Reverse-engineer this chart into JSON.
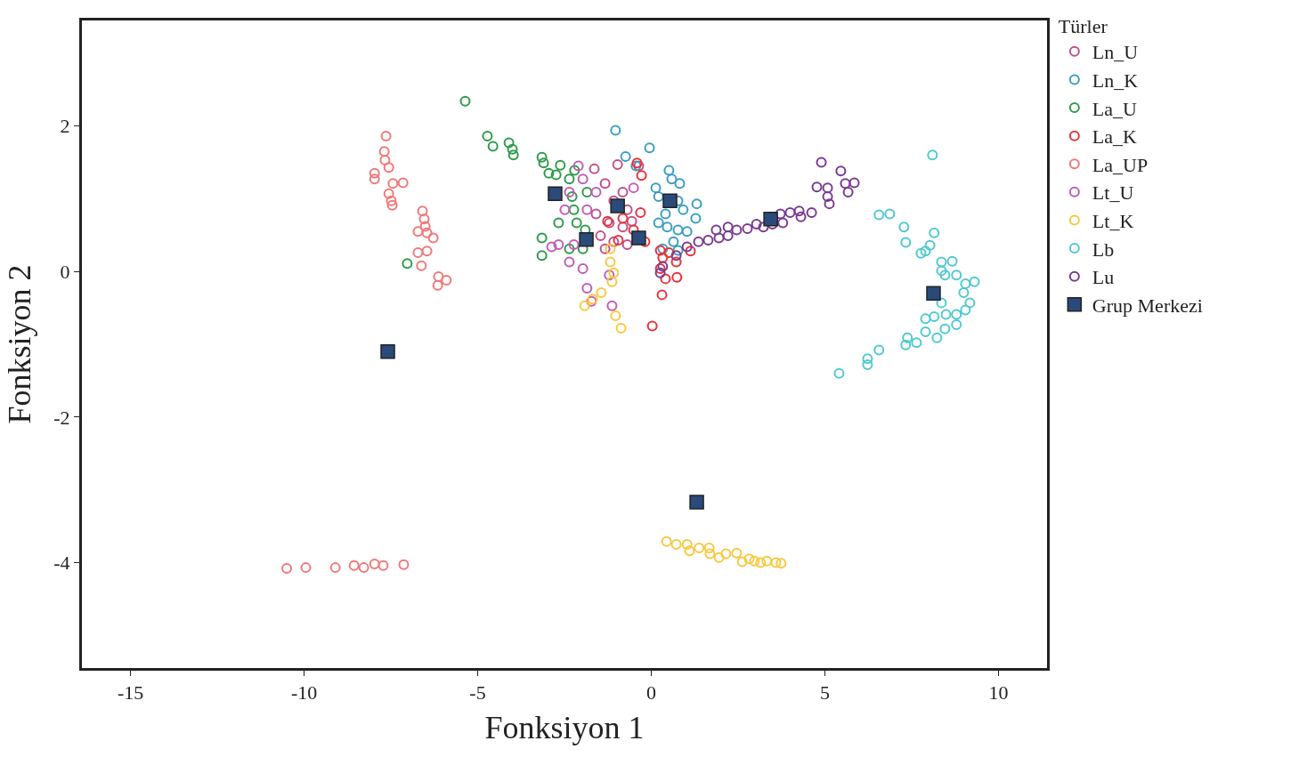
{
  "chart_data": {
    "type": "scatter",
    "xlabel": "Fonksiyon 1",
    "ylabel": "Fonksiyon 2",
    "legend_title": "Türler",
    "legend": "top right",
    "marker": "circle",
    "xlim": [
      -16.4,
      11.4
    ],
    "ylim": [
      -5.45,
      3.45
    ],
    "xticks": [
      -15,
      -10,
      -5,
      0,
      5,
      10
    ],
    "yticks": [
      -4,
      -2,
      0,
      2
    ],
    "series": [
      {
        "name": "Ln_U",
        "color": "#c0508a",
        "x": [
          -0.36,
          -0.97,
          -1.64,
          -1.33,
          -0.82,
          -1.08,
          -0.69,
          -1.59,
          -1.21,
          -0.82,
          -0.56,
          -1.46,
          -1.08,
          -0.69,
          -1.33
        ],
        "values": [
          1.45,
          1.47,
          1.41,
          1.21,
          1.09,
          0.97,
          0.85,
          0.79,
          0.67,
          0.61,
          0.69,
          0.49,
          0.41,
          0.37,
          0.31
        ]
      },
      {
        "name": "Ln_K",
        "color": "#3a9ec0",
        "x": [
          -1.03,
          -0.74,
          -0.05,
          -0.44,
          0.13,
          0.51,
          0.59,
          0.82,
          0.21,
          0.77,
          1.31,
          0.41,
          0.92,
          1.28,
          0.46,
          0.77,
          1.03,
          0.64,
          0.33,
          0.77,
          0.21
        ],
        "values": [
          1.94,
          1.58,
          1.7,
          1.45,
          1.15,
          1.39,
          1.27,
          1.21,
          1.03,
          0.97,
          0.93,
          0.79,
          0.85,
          0.73,
          0.61,
          0.57,
          0.55,
          0.41,
          0.31,
          0.29,
          0.67
        ]
      },
      {
        "name": "La_U",
        "color": "#2e9a4a",
        "x": [
          -5.36,
          -4.72,
          -4.56,
          -4.1,
          -4.0,
          -3.97,
          -7.03,
          -3.15,
          -3.1,
          -2.95,
          -2.62,
          -3.15,
          -3.15,
          -2.67,
          -2.36,
          -2.28,
          -2.23,
          -2.15,
          -1.85,
          -2.36,
          -1.9,
          -1.97,
          -2.74,
          -2.21
        ],
        "values": [
          2.34,
          1.86,
          1.72,
          1.77,
          1.68,
          1.6,
          0.11,
          1.57,
          1.49,
          1.35,
          1.46,
          0.46,
          0.22,
          0.67,
          1.27,
          1.03,
          0.85,
          0.67,
          1.09,
          0.31,
          0.57,
          0.31,
          1.33,
          1.39
        ]
      },
      {
        "name": "La_K",
        "color": "#e8323a",
        "x": [
          -0.41,
          -0.28,
          -0.82,
          -1.26,
          -0.51,
          -0.18,
          -0.95,
          0.26,
          0.51,
          0.33,
          0.72,
          0.26,
          0.41,
          0.74,
          0.31,
          0.03,
          1.13,
          -0.31
        ],
        "values": [
          1.49,
          1.32,
          0.73,
          0.69,
          0.57,
          0.41,
          0.43,
          0.29,
          0.26,
          0.19,
          0.13,
          0.04,
          -0.1,
          -0.08,
          -0.32,
          -0.75,
          0.28,
          0.81
        ]
      },
      {
        "name": "La_UP",
        "color": "#f07878",
        "x": [
          -10.5,
          -9.95,
          -9.1,
          -8.56,
          -8.28,
          -7.97,
          -7.72,
          -7.13,
          -7.64,
          -7.69,
          -7.67,
          -7.56,
          -7.97,
          -7.97,
          -7.44,
          -7.15,
          -7.56,
          -7.49,
          -7.46,
          -6.59,
          -6.54,
          -6.51,
          -6.72,
          -6.46,
          -6.28,
          -6.72,
          -6.46,
          -6.62,
          -6.13,
          -6.15,
          -5.9
        ],
        "values": [
          -4.08,
          -4.07,
          -4.07,
          -4.04,
          -4.07,
          -4.02,
          -4.04,
          -4.03,
          1.86,
          1.65,
          1.53,
          1.43,
          1.35,
          1.27,
          1.21,
          1.22,
          1.07,
          0.97,
          0.91,
          0.83,
          0.72,
          0.62,
          0.55,
          0.53,
          0.46,
          0.26,
          0.28,
          0.08,
          -0.07,
          -0.19,
          -0.12
        ]
      },
      {
        "name": "Lt_U",
        "color": "#c05cb8",
        "x": [
          -2.67,
          -2.36,
          -1.97,
          -1.85,
          -1.72,
          -1.21,
          -1.13,
          -2.1,
          -1.97,
          -2.36,
          -2.49,
          -1.85,
          -2.87,
          -2.23,
          -1.59,
          -0.51
        ],
        "values": [
          0.37,
          0.13,
          0.04,
          -0.23,
          -0.41,
          -0.05,
          -0.47,
          1.45,
          1.27,
          1.09,
          0.85,
          0.85,
          0.34,
          0.37,
          1.09,
          1.15
        ]
      },
      {
        "name": "Lt_K",
        "color": "#f8c840",
        "x": [
          -1.18,
          -1.08,
          -1.13,
          -1.44,
          -1.69,
          -1.92,
          -1.03,
          -0.87,
          -1.18,
          0.44,
          0.72,
          1.03,
          1.1,
          1.38,
          1.67,
          1.69,
          1.95,
          2.15,
          2.46,
          2.62,
          2.82,
          2.97,
          3.15,
          3.33,
          3.59,
          3.74
        ],
        "values": [
          0.13,
          -0.02,
          -0.14,
          -0.29,
          -0.38,
          -0.47,
          -0.61,
          -0.78,
          0.31,
          -3.71,
          -3.75,
          -3.75,
          -3.84,
          -3.8,
          -3.8,
          -3.88,
          -3.93,
          -3.88,
          -3.87,
          -3.99,
          -3.95,
          -3.98,
          -4.0,
          -3.98,
          -4.0,
          -4.01
        ]
      },
      {
        "name": "Lb",
        "color": "#50c8d0",
        "x": [
          8.1,
          6.87,
          6.56,
          7.28,
          8.15,
          7.33,
          8.03,
          7.9,
          7.77,
          8.36,
          8.67,
          8.36,
          8.46,
          8.79,
          9.05,
          9.31,
          9.0,
          9.18,
          8.36,
          9.05,
          8.79,
          8.49,
          8.15,
          7.9,
          8.79,
          8.46,
          7.9,
          8.23,
          7.38,
          7.64,
          7.33,
          6.56,
          6.23,
          6.23,
          5.41
        ],
        "values": [
          1.6,
          0.79,
          0.78,
          0.61,
          0.53,
          0.4,
          0.36,
          0.28,
          0.25,
          0.13,
          0.14,
          0.01,
          -0.05,
          -0.05,
          -0.17,
          -0.14,
          -0.29,
          -0.43,
          -0.43,
          -0.53,
          -0.59,
          -0.59,
          -0.62,
          -0.65,
          -0.73,
          -0.79,
          -0.83,
          -0.91,
          -0.91,
          -0.98,
          -1.01,
          -1.08,
          -1.2,
          -1.28,
          -1.4
        ]
      },
      {
        "name": "Lu",
        "color": "#7a3a90",
        "x": [
          4.9,
          5.46,
          5.85,
          5.59,
          4.77,
          5.08,
          5.67,
          5.08,
          5.13,
          4.62,
          4.26,
          4.0,
          4.31,
          3.72,
          3.79,
          3.49,
          3.23,
          3.03,
          2.77,
          2.46,
          2.21,
          1.87,
          2.21,
          1.95,
          1.64,
          1.36,
          1.03,
          0.72,
          0.33,
          0.26
        ],
        "values": [
          1.5,
          1.38,
          1.22,
          1.21,
          1.16,
          1.15,
          1.09,
          1.03,
          0.93,
          0.81,
          0.83,
          0.81,
          0.75,
          0.79,
          0.67,
          0.65,
          0.61,
          0.65,
          0.59,
          0.57,
          0.61,
          0.57,
          0.49,
          0.46,
          0.43,
          0.41,
          0.34,
          0.22,
          0.07,
          -0.02
        ]
      },
      {
        "name": "Grup Merkezi",
        "color": "#2a4a7a",
        "marker": "square",
        "x": [
          -7.59,
          -2.77,
          -0.97,
          0.54,
          -1.87,
          -0.36,
          3.44,
          8.13,
          1.31
        ],
        "values": [
          -1.1,
          1.07,
          0.9,
          0.97,
          0.44,
          0.46,
          0.72,
          -0.3,
          -3.17
        ]
      }
    ]
  }
}
